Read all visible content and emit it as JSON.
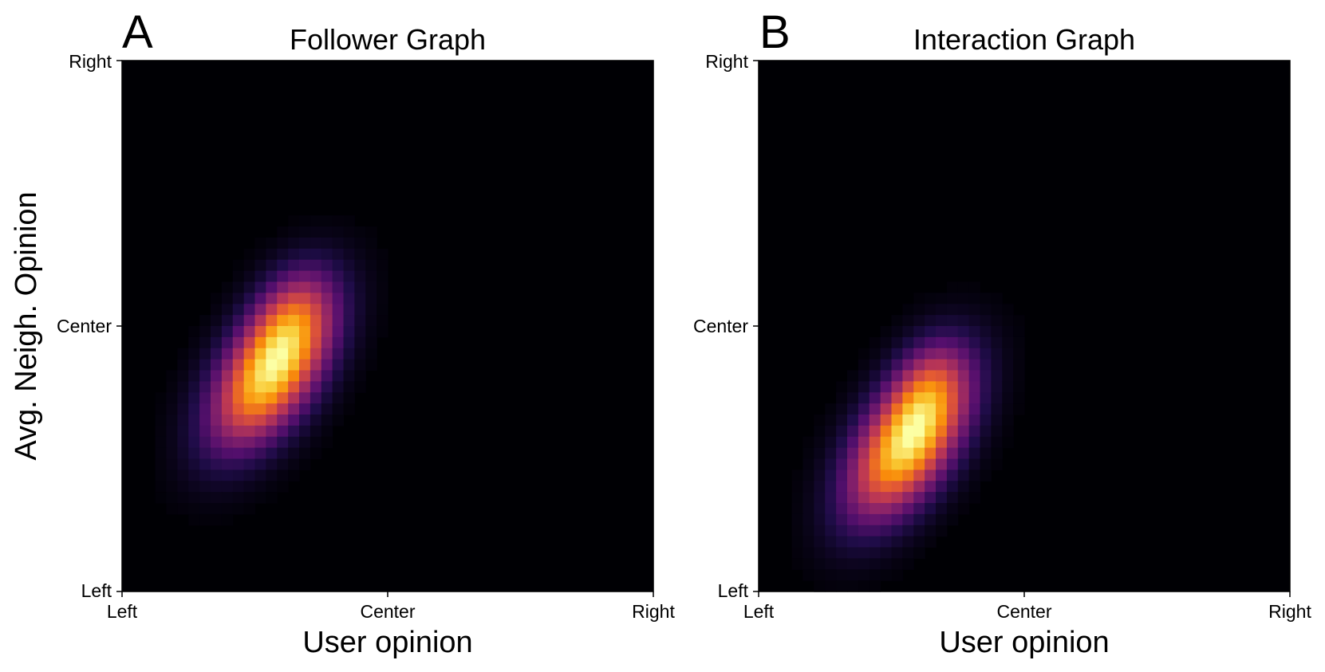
{
  "colors": {
    "background": "#ffffff",
    "colormap": "inferno",
    "axis_line": "#000000"
  },
  "chart_data": [
    {
      "type": "heatmap",
      "panel_label": "A",
      "title": "Follower Graph",
      "xlabel": "User opinion",
      "ylabel": "Avg. Neigh. Opinion",
      "x_ticks": [
        "Left",
        "Center",
        "Right"
      ],
      "y_ticks": [
        "Left",
        "Center",
        "Right"
      ],
      "xlim": [
        -1,
        1
      ],
      "ylim": [
        -1,
        1
      ],
      "grid": false,
      "grid_resolution": 48,
      "density_components": [
        {
          "cx": -0.44,
          "cy": -0.17,
          "sx": 0.15,
          "sy": 0.19,
          "rho": 0.55,
          "weight": 1.0
        },
        {
          "cx": -0.36,
          "cy": 0.05,
          "sx": 0.1,
          "sy": 0.13,
          "rho": 0.3,
          "weight": 0.28
        }
      ]
    },
    {
      "type": "heatmap",
      "panel_label": "B",
      "title": "Interaction Graph",
      "xlabel": "User opinion",
      "ylabel": "",
      "x_ticks": [
        "Left",
        "Center",
        "Right"
      ],
      "y_ticks": [
        "Left",
        "Center",
        "Right"
      ],
      "xlim": [
        -1,
        1
      ],
      "ylim": [
        -1,
        1
      ],
      "grid": false,
      "grid_resolution": 48,
      "density_components": [
        {
          "cx": -0.44,
          "cy": -0.44,
          "sx": 0.15,
          "sy": 0.19,
          "rho": 0.55,
          "weight": 1.0
        },
        {
          "cx": -0.36,
          "cy": -0.22,
          "sx": 0.1,
          "sy": 0.13,
          "rho": 0.3,
          "weight": 0.28
        }
      ]
    }
  ]
}
